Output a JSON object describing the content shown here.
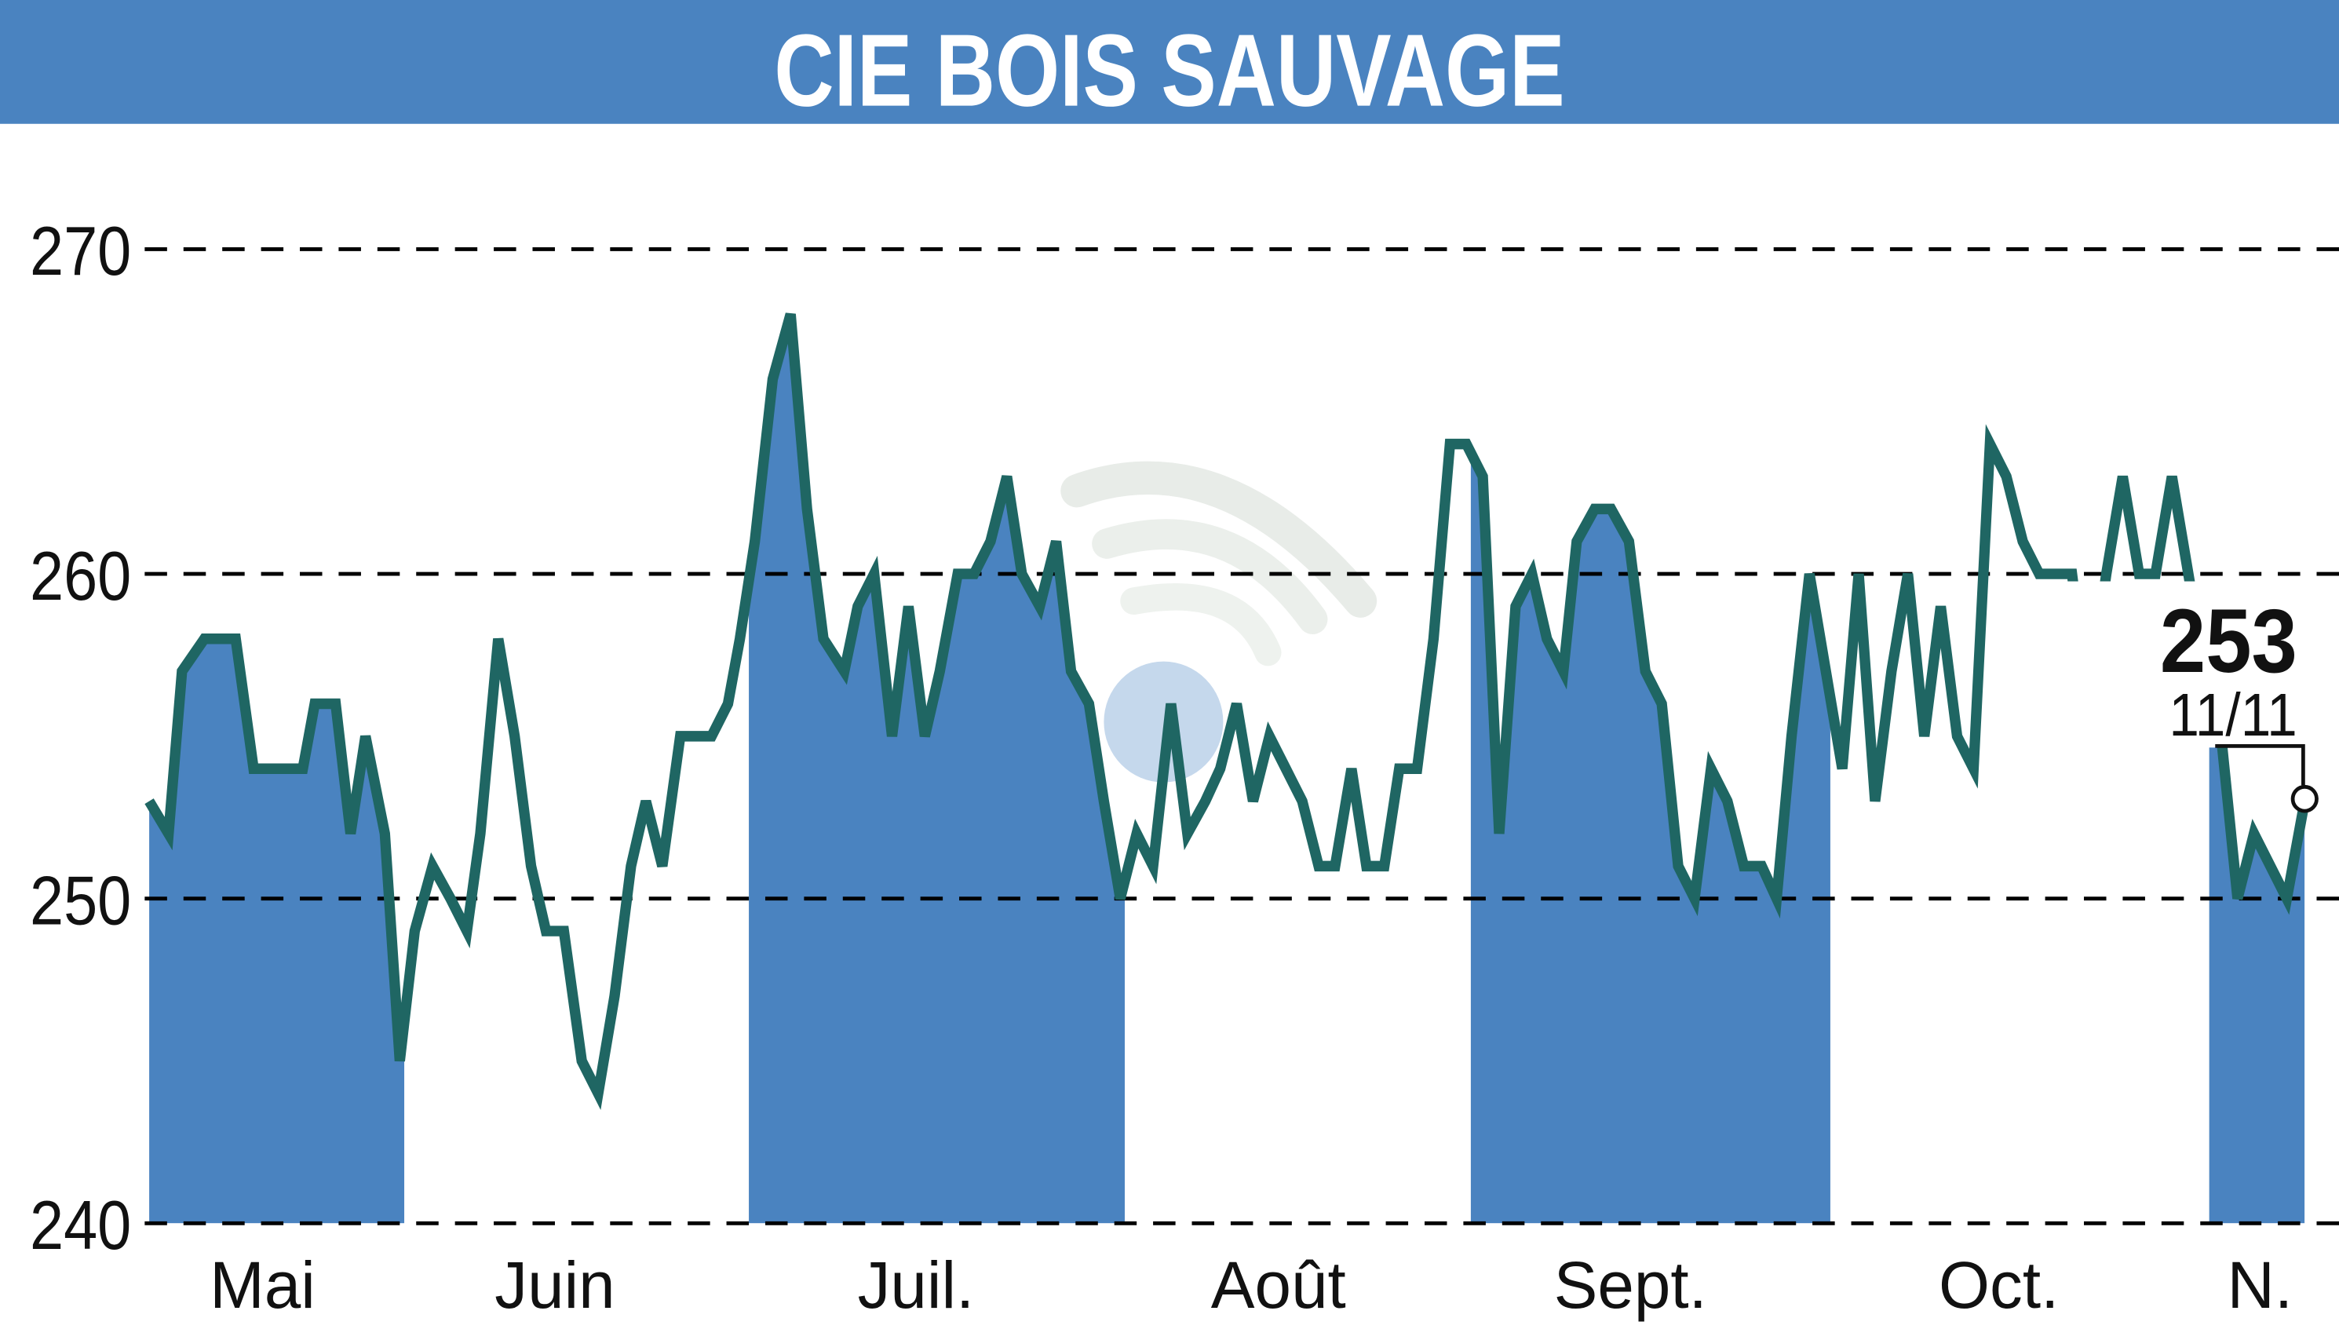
{
  "header": {
    "title": "CIE BOIS SAUVAGE",
    "background": "#4A83C0"
  },
  "last_value": {
    "value": "253",
    "date": "11/11"
  },
  "colors": {
    "line": "#1F6663",
    "fill": "#4A83C0",
    "grid": "#000000",
    "watermark_arcs": "#E6EAE6",
    "watermark_ball": "#BCD3EA"
  },
  "chart_data": {
    "type": "line",
    "title": "CIE BOIS SAUVAGE",
    "xlabel": "",
    "ylabel": "",
    "ylim": [
      240,
      270
    ],
    "yticks": [
      240,
      250,
      260,
      270
    ],
    "grid": "horizontal dashed",
    "month_labels": [
      "Mai",
      "Juin",
      "Juil.",
      "Août",
      "Sept.",
      "Oct.",
      "N."
    ],
    "month_label_x": [
      176,
      372,
      614,
      857,
      1093,
      1340,
      1515
    ],
    "shaded_months": [
      {
        "label": "Mai",
        "x0": 97,
        "x1": 271
      },
      {
        "label": "Juil.",
        "x0": 502,
        "x1": 754
      },
      {
        "label": "Sept.",
        "x0": 986,
        "x1": 1227
      },
      {
        "label": "N.",
        "x0": 1481,
        "x1": 1545
      }
    ],
    "last": {
      "value": 253,
      "date": "11/11"
    },
    "series": [
      {
        "name": "CIE BOIS SAUVAGE",
        "x": [
          100,
          113,
          122,
          137,
          158,
          170,
          203,
          211,
          225,
          235,
          245,
          258,
          268,
          278,
          290,
          302,
          313,
          322,
          334,
          345,
          356,
          366,
          378,
          390,
          401,
          412,
          423,
          433,
          444,
          456,
          477,
          488,
          496,
          506,
          518,
          530,
          541,
          552,
          566,
          575,
          586,
          598,
          609,
          620,
          630,
          642,
          653,
          664,
          675,
          685,
          697,
          708,
          718,
          730,
          740,
          751,
          762,
          773,
          785,
          796,
          808,
          818,
          829,
          840,
          851,
          862,
          873,
          884,
          895,
          906,
          916,
          928,
          938,
          950,
          961,
          972,
          983,
          994,
          1005,
          1016,
          1027,
          1037,
          1048,
          1057,
          1069,
          1080,
          1092,
          1103,
          1114,
          1125,
          1136,
          1147,
          1158,
          1169,
          1181,
          1191,
          1201,
          1213,
          1224,
          1235,
          1246,
          1257,
          1268,
          1279,
          1290,
          1301,
          1312,
          1323,
          1334,
          1345,
          1356,
          1367,
          1378,
          1389,
          1400,
          1412,
          1423,
          1434,
          1445,
          1456,
          1467,
          1478,
          1489,
          1500,
          1511,
          1522,
          1533,
          1545
        ],
        "values": [
          253,
          252,
          257,
          258,
          258,
          254,
          254,
          256,
          256,
          252,
          255,
          252,
          245,
          249,
          251,
          250,
          249,
          252,
          258,
          255,
          251,
          249,
          249,
          245,
          244,
          247,
          251,
          253,
          251,
          255,
          255,
          256,
          258,
          261,
          266,
          268,
          262,
          258,
          257,
          259,
          260,
          255,
          259,
          255,
          257,
          260,
          260,
          261,
          263,
          260,
          259,
          261,
          257,
          256,
          253,
          250,
          252,
          251,
          256,
          252,
          253,
          254,
          256,
          253,
          255,
          254,
          253,
          251,
          251,
          254,
          251,
          251,
          254,
          254,
          258,
          264,
          264,
          263,
          252,
          259,
          260,
          258,
          257,
          261,
          262,
          262,
          261,
          257,
          256,
          251,
          250,
          254,
          253,
          251,
          251,
          250,
          255,
          260,
          257,
          254,
          260,
          253,
          257,
          260,
          255,
          259,
          255,
          254,
          264,
          263,
          261,
          260,
          260,
          260,
          256,
          260,
          263,
          260,
          260,
          263,
          260,
          257,
          255,
          250,
          252,
          251,
          250,
          253
        ]
      }
    ]
  }
}
